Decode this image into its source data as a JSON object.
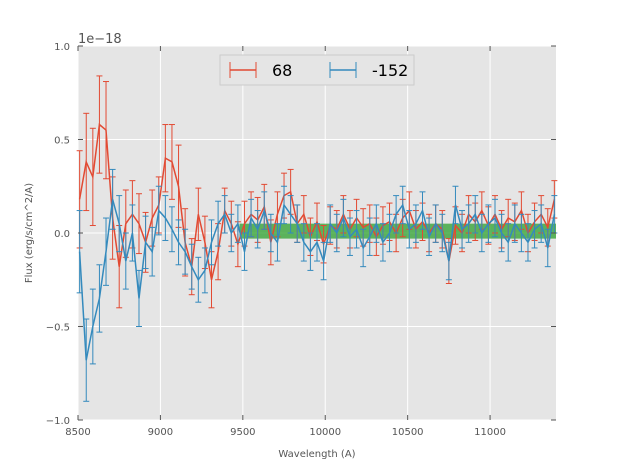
{
  "chart_data": {
    "type": "line",
    "title": "",
    "xlabel": "Wavelength (A)",
    "ylabel": "Flux (erg/s/cm^2/A)",
    "offset_text": "1e−18",
    "scale": 1e-18,
    "xlim": [
      8500,
      11400
    ],
    "ylim": [
      -1.0,
      1.0
    ],
    "xticks": [
      8500,
      9000,
      9500,
      10000,
      10500,
      11000
    ],
    "xtick_labels": [
      "8500",
      "9000",
      "9500",
      "10000",
      "10500",
      "11000"
    ],
    "yticks": [
      -1.0,
      -0.5,
      0.0,
      0.5,
      1.0
    ],
    "ytick_labels": [
      "−1.0",
      "−0.5",
      "0.0",
      "0.5",
      "1.0"
    ],
    "grid": true,
    "legend_position": "top-center",
    "band": {
      "x": [
        9480,
        11400
      ],
      "y": [
        -0.03,
        0.05
      ],
      "color": "#2ca02c"
    },
    "series": [
      {
        "name": "68",
        "color": "#e24a33",
        "x": [
          8510,
          8550,
          8590,
          8630,
          8670,
          8710,
          8750,
          8790,
          8830,
          8870,
          8910,
          8950,
          8990,
          9030,
          9070,
          9110,
          9150,
          9190,
          9230,
          9270,
          9310,
          9350,
          9390,
          9430,
          9470,
          9510,
          9550,
          9590,
          9630,
          9670,
          9710,
          9750,
          9790,
          9830,
          9870,
          9910,
          9950,
          9990,
          10030,
          10070,
          10110,
          10150,
          10190,
          10230,
          10270,
          10310,
          10350,
          10390,
          10430,
          10470,
          10510,
          10550,
          10590,
          10630,
          10670,
          10710,
          10750,
          10790,
          10830,
          10870,
          10910,
          10950,
          10990,
          11030,
          11070,
          11110,
          11150,
          11190,
          11230,
          11270,
          11310,
          11350,
          11390
        ],
        "y": [
          0.18,
          0.38,
          0.3,
          0.58,
          0.55,
          0.08,
          -0.18,
          0.05,
          0.1,
          0.05,
          -0.05,
          0.08,
          0.15,
          0.4,
          0.38,
          0.25,
          -0.05,
          -0.18,
          0.1,
          -0.05,
          -0.25,
          -0.1,
          0.12,
          0.05,
          -0.06,
          0.05,
          0.1,
          0.07,
          0.14,
          -0.05,
          0.1,
          0.2,
          0.22,
          0.05,
          0.1,
          -0.02,
          0.06,
          -0.06,
          0.04,
          0.02,
          0.1,
          0.02,
          0.08,
          0.03,
          0.05,
          -0.02,
          0.04,
          0.06,
          0.0,
          0.08,
          0.12,
          0.02,
          0.06,
          0.0,
          0.05,
          0.02,
          -0.15,
          0.04,
          0.0,
          0.1,
          0.06,
          0.12,
          0.04,
          0.1,
          0.02,
          0.08,
          0.06,
          0.12,
          0.0,
          0.06,
          0.1,
          0.03,
          0.18
        ],
        "err": [
          0.26,
          0.26,
          0.26,
          0.26,
          0.26,
          0.22,
          0.22,
          0.18,
          0.18,
          0.16,
          0.16,
          0.15,
          0.15,
          0.18,
          0.2,
          0.22,
          0.18,
          0.15,
          0.14,
          0.14,
          0.15,
          0.15,
          0.12,
          0.12,
          0.12,
          0.12,
          0.12,
          0.12,
          0.12,
          0.12,
          0.12,
          0.12,
          0.12,
          0.1,
          0.1,
          0.1,
          0.1,
          0.1,
          0.1,
          0.1,
          0.1,
          0.1,
          0.1,
          0.1,
          0.1,
          0.1,
          0.1,
          0.1,
          0.1,
          0.1,
          0.1,
          0.1,
          0.1,
          0.1,
          0.1,
          0.1,
          0.12,
          0.1,
          0.1,
          0.1,
          0.1,
          0.1,
          0.1,
          0.1,
          0.1,
          0.1,
          0.1,
          0.1,
          0.1,
          0.1,
          0.1,
          0.1,
          0.1
        ]
      },
      {
        "name": "-152",
        "color": "#348abd",
        "x": [
          8510,
          8550,
          8590,
          8630,
          8670,
          8710,
          8750,
          8790,
          8830,
          8870,
          8910,
          8950,
          8990,
          9030,
          9070,
          9110,
          9150,
          9190,
          9230,
          9270,
          9310,
          9350,
          9390,
          9430,
          9470,
          9510,
          9550,
          9590,
          9630,
          9670,
          9710,
          9750,
          9790,
          9830,
          9870,
          9910,
          9950,
          9990,
          10030,
          10070,
          10110,
          10150,
          10190,
          10230,
          10270,
          10310,
          10350,
          10390,
          10430,
          10470,
          10510,
          10550,
          10590,
          10630,
          10670,
          10710,
          10750,
          10790,
          10830,
          10870,
          10910,
          10950,
          10990,
          11030,
          11070,
          11110,
          11150,
          11190,
          11230,
          11270,
          11310,
          11350,
          11390
        ],
        "y": [
          -0.1,
          -0.68,
          -0.5,
          -0.35,
          -0.1,
          0.18,
          0.05,
          -0.15,
          0.0,
          -0.35,
          -0.05,
          -0.1,
          0.12,
          0.08,
          0.02,
          -0.05,
          -0.1,
          -0.18,
          -0.25,
          -0.2,
          -0.05,
          0.05,
          0.1,
          0.0,
          0.05,
          -0.1,
          0.08,
          0.02,
          0.12,
          0.0,
          -0.05,
          0.15,
          0.1,
          0.05,
          -0.05,
          -0.1,
          -0.05,
          -0.15,
          0.05,
          0.0,
          0.08,
          -0.02,
          0.02,
          -0.08,
          -0.02,
          0.05,
          -0.05,
          0.0,
          0.1,
          0.15,
          0.02,
          0.05,
          0.12,
          -0.02,
          0.05,
          0.0,
          -0.15,
          0.15,
          0.02,
          0.05,
          0.1,
          0.0,
          0.05,
          0.08,
          0.0,
          -0.05,
          0.05,
          0.0,
          -0.05,
          0.02,
          0.05,
          -0.08,
          0.1
        ],
        "err": [
          0.22,
          0.22,
          0.2,
          0.18,
          0.18,
          0.16,
          0.15,
          0.15,
          0.15,
          0.15,
          0.14,
          0.13,
          0.13,
          0.12,
          0.12,
          0.12,
          0.12,
          0.12,
          0.12,
          0.12,
          0.12,
          0.12,
          0.1,
          0.1,
          0.1,
          0.1,
          0.1,
          0.1,
          0.1,
          0.1,
          0.1,
          0.1,
          0.1,
          0.1,
          0.1,
          0.1,
          0.1,
          0.1,
          0.1,
          0.1,
          0.1,
          0.1,
          0.1,
          0.1,
          0.1,
          0.1,
          0.1,
          0.1,
          0.1,
          0.1,
          0.1,
          0.1,
          0.1,
          0.1,
          0.1,
          0.1,
          0.1,
          0.1,
          0.1,
          0.1,
          0.1,
          0.1,
          0.1,
          0.1,
          0.1,
          0.1,
          0.1,
          0.1,
          0.1,
          0.1,
          0.1,
          0.1,
          0.1
        ]
      }
    ]
  }
}
